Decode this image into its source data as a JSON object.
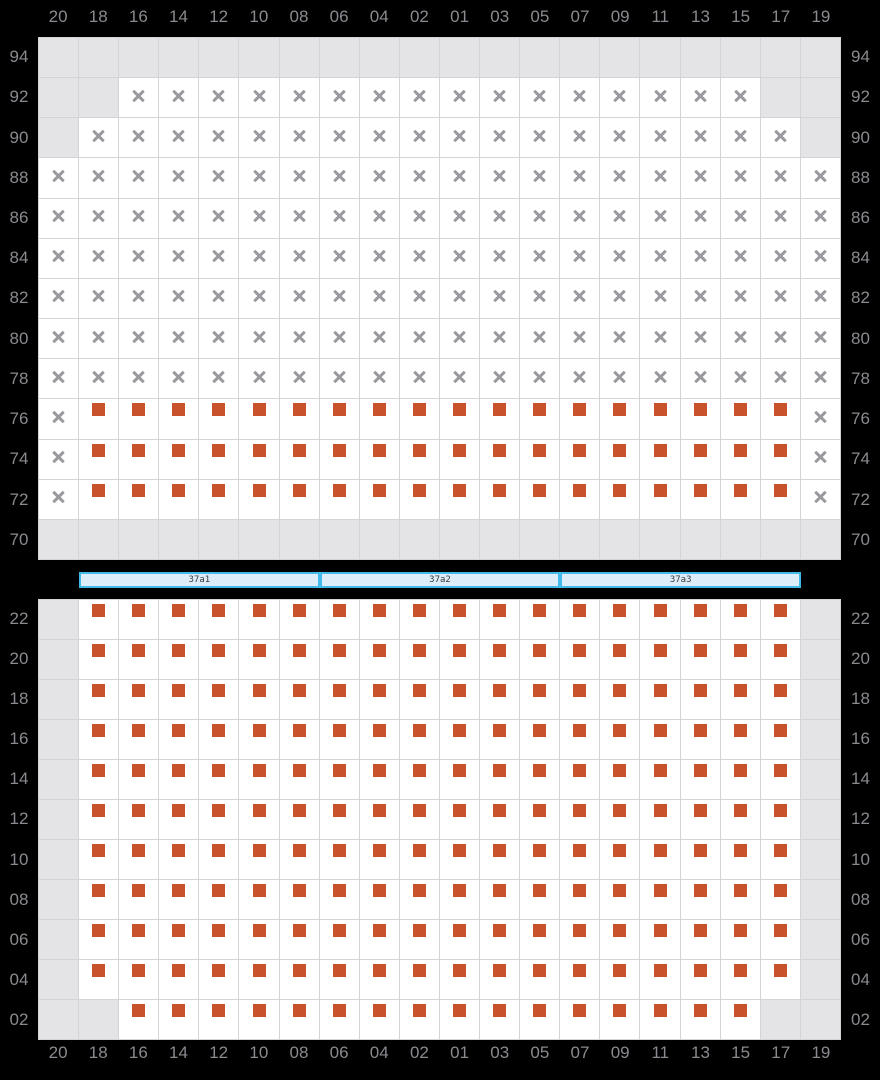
{
  "columns": [
    "20",
    "18",
    "16",
    "14",
    "12",
    "10",
    "08",
    "06",
    "04",
    "02",
    "01",
    "03",
    "05",
    "07",
    "09",
    "11",
    "13",
    "15",
    "17",
    "19"
  ],
  "top_grid": {
    "rows": [
      {
        "label": "94",
        "cells": "eeeeeeeeeeeeeeeeeeee"
      },
      {
        "label": "92",
        "cells": "eexxxxxxxxxxxxxxxxee"
      },
      {
        "label": "90",
        "cells": "exxxxxxxxxxxxxxxxxxe"
      },
      {
        "label": "88",
        "cells": "xxxxxxxxxxxxxxxxxxxx"
      },
      {
        "label": "86",
        "cells": "xxxxxxxxxxxxxxxxxxxx"
      },
      {
        "label": "84",
        "cells": "xxxxxxxxxxxxxxxxxxxx"
      },
      {
        "label": "82",
        "cells": "xxxxxxxxxxxxxxxxxxxx"
      },
      {
        "label": "80",
        "cells": "xxxxxxxxxxxxxxxxxxxx"
      },
      {
        "label": "78",
        "cells": "xxxxxxxxxxxxxxxxxxxx"
      },
      {
        "label": "76",
        "cells": "xssssssssssssssssssx"
      },
      {
        "label": "74",
        "cells": "xssssssssssssssssssx"
      },
      {
        "label": "72",
        "cells": "xssssssssssssssssssx"
      },
      {
        "label": "70",
        "cells": "eeeeeeeeeeeeeeeeeeee"
      }
    ]
  },
  "section_bar": {
    "segments": [
      {
        "label": "37a1"
      },
      {
        "label": "37a2"
      },
      {
        "label": "37a3"
      }
    ]
  },
  "bottom_grid": {
    "rows": [
      {
        "label": "22",
        "cells": "esssssssssssssssssse"
      },
      {
        "label": "20",
        "cells": "esssssssssssssssssse"
      },
      {
        "label": "18",
        "cells": "esssssssssssssssssse"
      },
      {
        "label": "16",
        "cells": "esssssssssssssssssse"
      },
      {
        "label": "14",
        "cells": "esssssssssssssssssse"
      },
      {
        "label": "12",
        "cells": "esssssssssssssssssse"
      },
      {
        "label": "10",
        "cells": "esssssssssssssssssse"
      },
      {
        "label": "08",
        "cells": "esssssssssssssssssse"
      },
      {
        "label": "06",
        "cells": "esssssssssssssssssse"
      },
      {
        "label": "04",
        "cells": "esssssssssssssssssse"
      },
      {
        "label": "02",
        "cells": "eessssssssssssssssee"
      }
    ]
  },
  "cell_states": {
    "e": "no-seat",
    "x": "unavailable-seat",
    "s": "available-seat"
  },
  "colors": {
    "background": "#000000",
    "seat_square": "#c8522b",
    "x_mark": "#9a9a9e",
    "cell_white": "#ffffff",
    "cell_empty": "#e4e4e6",
    "grid_line": "#d4d4d8",
    "label_text": "#8a8a90",
    "bar_fill": "#dcedf9",
    "bar_border": "#41b9e9",
    "bar_text": "#3a3a3a"
  }
}
